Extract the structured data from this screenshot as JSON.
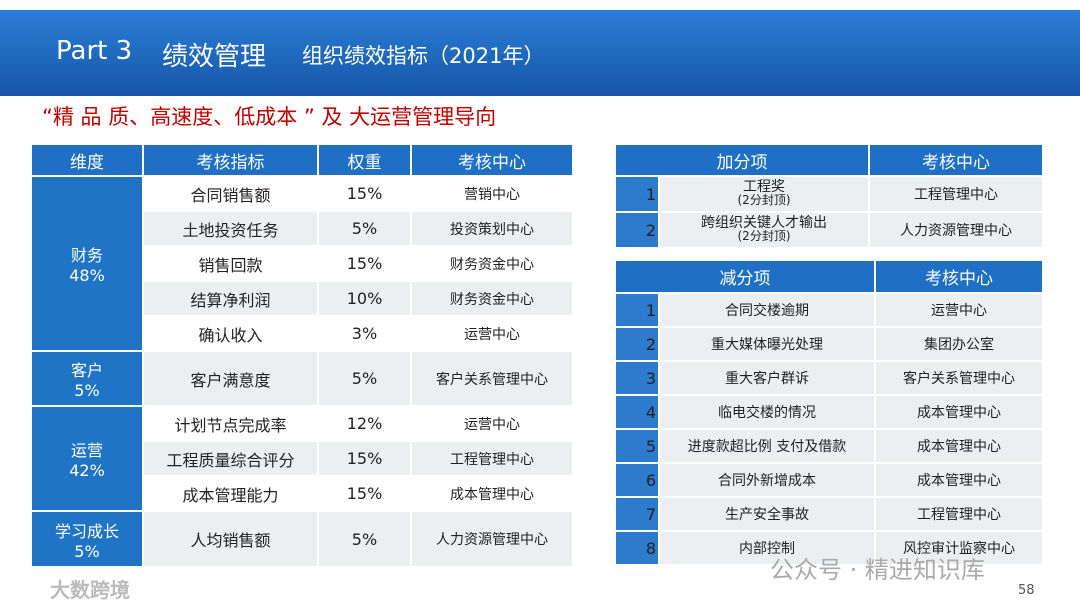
{
  "header": {
    "part": "Part 3",
    "title": "绩效管理",
    "subtitle": "组织绩效指标（2021年）"
  },
  "subheading": "“精 品 质、高速度、低成本 ” 及 大运营管理导向",
  "left_table": {
    "headers": [
      "维度",
      "考核指标",
      "权重",
      "考核中心"
    ],
    "groups": [
      {
        "dimension": "财务",
        "share": "48%",
        "rows": [
          [
            "合同销售额",
            "15%",
            "营销中心"
          ],
          [
            "土地投资任务",
            "5%",
            "投资策划中心"
          ],
          [
            "销售回款",
            "15%",
            "财务资金中心"
          ],
          [
            "结算净利润",
            "10%",
            "财务资金中心"
          ],
          [
            "确认收入",
            "3%",
            "运营中心"
          ]
        ]
      },
      {
        "dimension": "客户",
        "share": "5%",
        "rows": [
          [
            "客户满意度",
            "5%",
            "客户关系管理中心"
          ]
        ]
      },
      {
        "dimension": "运营",
        "share": "42%",
        "rows": [
          [
            "计划节点完成率",
            "12%",
            "运营中心"
          ],
          [
            "工程质量综合评分",
            "15%",
            "工程管理中心"
          ],
          [
            "成本管理能力",
            "15%",
            "成本管理中心"
          ]
        ]
      },
      {
        "dimension": "学习成长",
        "share": "5%",
        "rows": [
          [
            "人均销售额",
            "5%",
            "人力资源管理中心"
          ]
        ]
      }
    ]
  },
  "bonus_table": {
    "headers": [
      "加分项",
      "考核中心"
    ],
    "rows": [
      [
        "1",
        "工程奖",
        "(2分封顶)",
        "工程管理中心"
      ],
      [
        "2",
        "跨组织关键人才输出",
        "(2分封顶)",
        "人力资源管理中心"
      ]
    ]
  },
  "penalty_table": {
    "headers": [
      "减分项",
      "考核中心"
    ],
    "rows": [
      [
        "1",
        "合同交楼逾期",
        "运营中心"
      ],
      [
        "2",
        "重大媒体曝光处理",
        "集团办公室"
      ],
      [
        "3",
        "重大客户群诉",
        "客户关系管理中心"
      ],
      [
        "4",
        "临电交楼的情况",
        "成本管理中心"
      ],
      [
        "5",
        "进度款超比例 支付及借款",
        "成本管理中心"
      ],
      [
        "6",
        "合同外新增成本",
        "成本管理中心"
      ],
      [
        "7",
        "生产安全事故",
        "工程管理中心"
      ],
      [
        "8",
        "内部控制",
        "风控审计监察中心"
      ]
    ]
  },
  "watermark": {
    "left": "大数跨境",
    "right": "公众号 · 精进知识库"
  },
  "page_number": "58"
}
